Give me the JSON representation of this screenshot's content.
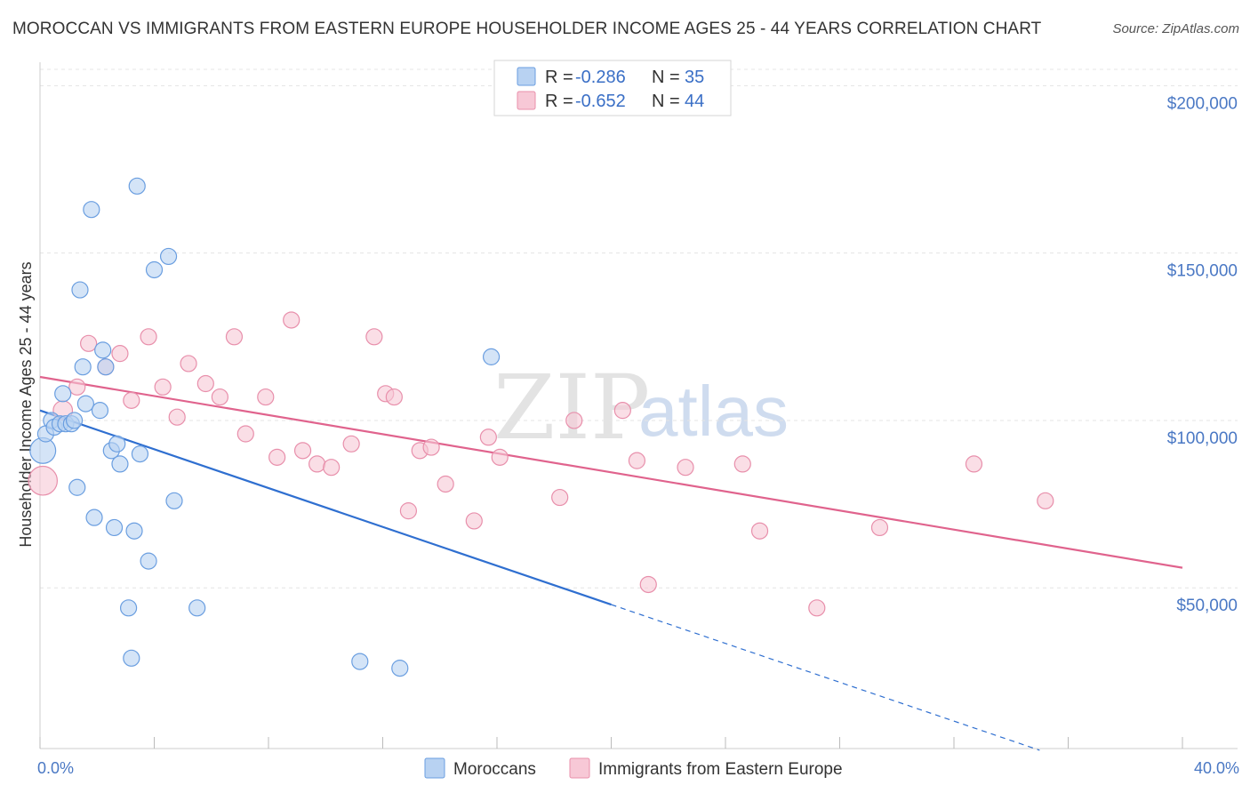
{
  "title": "MOROCCAN VS IMMIGRANTS FROM EASTERN EUROPE HOUSEHOLDER INCOME AGES 25 - 44 YEARS CORRELATION CHART",
  "source": "Source: ZipAtlas.com",
  "watermark": {
    "zip": "ZIP",
    "atlas": "atlas"
  },
  "colors": {
    "moroccans_fill": "#b8d2f2",
    "moroccans_stroke": "#6a9ee0",
    "moroccans_line": "#2f6fd0",
    "eastern_fill": "#f7c8d6",
    "eastern_stroke": "#e88fab",
    "eastern_line": "#e0638d",
    "grid": "#e4e4e4",
    "tick_text": "#4a78c4"
  },
  "legend": {
    "rows": [
      {
        "r_label": "R =",
        "r_value": "-0.286",
        "n_label": "N =",
        "n_value": "35"
      },
      {
        "r_label": "R =",
        "r_value": "-0.652",
        "n_label": "N =",
        "n_value": "44"
      }
    ]
  },
  "chart_data": {
    "type": "scatter",
    "title": "MOROCCAN VS IMMIGRANTS FROM EASTERN EUROPE HOUSEHOLDER INCOME AGES 25 - 44 YEARS CORRELATION CHART",
    "xlabel": "",
    "ylabel": "Householder Income Ages 25 - 44 years",
    "xlim": [
      0,
      40
    ],
    "ylim": [
      2000,
      207000
    ],
    "x_tick_labels": [
      "0.0%",
      "40.0%"
    ],
    "y_ticks": [
      50000,
      100000,
      150000,
      200000
    ],
    "y_tick_labels": [
      "$50,000",
      "$100,000",
      "$150,000",
      "$200,000"
    ],
    "grid": true,
    "legend_position": "top-center",
    "series": [
      {
        "name": "Moroccans",
        "r": -0.286,
        "n": 35,
        "trend": {
          "x0": 0,
          "y0": 103000,
          "x1": 20,
          "y1": 45000,
          "dashed_to_x": 35,
          "dashed_to_y": 1500
        },
        "points": [
          {
            "x": 0.1,
            "y": 91000,
            "s": 1.6
          },
          {
            "x": 0.2,
            "y": 96000,
            "s": 1
          },
          {
            "x": 0.4,
            "y": 100000,
            "s": 1
          },
          {
            "x": 0.5,
            "y": 98000,
            "s": 1
          },
          {
            "x": 0.7,
            "y": 99000,
            "s": 1
          },
          {
            "x": 0.8,
            "y": 108000,
            "s": 1
          },
          {
            "x": 0.9,
            "y": 99000,
            "s": 1
          },
          {
            "x": 1.1,
            "y": 99000,
            "s": 1
          },
          {
            "x": 1.2,
            "y": 100000,
            "s": 1
          },
          {
            "x": 1.3,
            "y": 80000,
            "s": 1
          },
          {
            "x": 1.4,
            "y": 139000,
            "s": 1
          },
          {
            "x": 1.5,
            "y": 116000,
            "s": 1
          },
          {
            "x": 1.6,
            "y": 105000,
            "s": 1
          },
          {
            "x": 1.8,
            "y": 163000,
            "s": 1
          },
          {
            "x": 1.9,
            "y": 71000,
            "s": 1
          },
          {
            "x": 2.1,
            "y": 103000,
            "s": 1
          },
          {
            "x": 2.2,
            "y": 121000,
            "s": 1
          },
          {
            "x": 2.3,
            "y": 116000,
            "s": 1
          },
          {
            "x": 2.5,
            "y": 91000,
            "s": 1
          },
          {
            "x": 2.6,
            "y": 68000,
            "s": 1
          },
          {
            "x": 2.7,
            "y": 93000,
            "s": 1
          },
          {
            "x": 2.8,
            "y": 87000,
            "s": 1
          },
          {
            "x": 3.1,
            "y": 44000,
            "s": 1
          },
          {
            "x": 3.2,
            "y": 29000,
            "s": 1
          },
          {
            "x": 3.3,
            "y": 67000,
            "s": 1
          },
          {
            "x": 3.4,
            "y": 170000,
            "s": 1
          },
          {
            "x": 3.5,
            "y": 90000,
            "s": 1
          },
          {
            "x": 3.8,
            "y": 58000,
            "s": 1
          },
          {
            "x": 4.0,
            "y": 145000,
            "s": 1
          },
          {
            "x": 4.5,
            "y": 149000,
            "s": 1
          },
          {
            "x": 4.7,
            "y": 76000,
            "s": 1
          },
          {
            "x": 5.5,
            "y": 44000,
            "s": 1
          },
          {
            "x": 11.2,
            "y": 28000,
            "s": 1
          },
          {
            "x": 12.6,
            "y": 26000,
            "s": 1
          },
          {
            "x": 15.8,
            "y": 119000,
            "s": 1
          }
        ]
      },
      {
        "name": "Immigrants from Eastern Europe",
        "r": -0.652,
        "n": 44,
        "trend": {
          "x0": 0,
          "y0": 113000,
          "x1": 40,
          "y1": 56000
        },
        "points": [
          {
            "x": 0.1,
            "y": 82000,
            "s": 1.8
          },
          {
            "x": 0.8,
            "y": 103000,
            "s": 1.2
          },
          {
            "x": 1.3,
            "y": 110000,
            "s": 1
          },
          {
            "x": 1.7,
            "y": 123000,
            "s": 1
          },
          {
            "x": 2.3,
            "y": 116000,
            "s": 1
          },
          {
            "x": 2.8,
            "y": 120000,
            "s": 1
          },
          {
            "x": 3.2,
            "y": 106000,
            "s": 1
          },
          {
            "x": 3.8,
            "y": 125000,
            "s": 1
          },
          {
            "x": 4.3,
            "y": 110000,
            "s": 1
          },
          {
            "x": 4.8,
            "y": 101000,
            "s": 1
          },
          {
            "x": 5.2,
            "y": 117000,
            "s": 1
          },
          {
            "x": 5.8,
            "y": 111000,
            "s": 1
          },
          {
            "x": 6.3,
            "y": 107000,
            "s": 1
          },
          {
            "x": 6.8,
            "y": 125000,
            "s": 1
          },
          {
            "x": 7.2,
            "y": 96000,
            "s": 1
          },
          {
            "x": 7.9,
            "y": 107000,
            "s": 1
          },
          {
            "x": 8.3,
            "y": 89000,
            "s": 1
          },
          {
            "x": 8.8,
            "y": 130000,
            "s": 1
          },
          {
            "x": 9.2,
            "y": 91000,
            "s": 1
          },
          {
            "x": 9.7,
            "y": 87000,
            "s": 1
          },
          {
            "x": 10.2,
            "y": 86000,
            "s": 1
          },
          {
            "x": 10.9,
            "y": 93000,
            "s": 1
          },
          {
            "x": 11.7,
            "y": 125000,
            "s": 1
          },
          {
            "x": 12.1,
            "y": 108000,
            "s": 1
          },
          {
            "x": 12.4,
            "y": 107000,
            "s": 1
          },
          {
            "x": 12.9,
            "y": 73000,
            "s": 1
          },
          {
            "x": 13.3,
            "y": 91000,
            "s": 1
          },
          {
            "x": 13.7,
            "y": 92000,
            "s": 1
          },
          {
            "x": 14.2,
            "y": 81000,
            "s": 1
          },
          {
            "x": 15.2,
            "y": 70000,
            "s": 1
          },
          {
            "x": 15.7,
            "y": 95000,
            "s": 1
          },
          {
            "x": 16.1,
            "y": 89000,
            "s": 1
          },
          {
            "x": 18.2,
            "y": 77000,
            "s": 1
          },
          {
            "x": 18.7,
            "y": 100000,
            "s": 1
          },
          {
            "x": 20.4,
            "y": 103000,
            "s": 1
          },
          {
            "x": 20.9,
            "y": 88000,
            "s": 1
          },
          {
            "x": 21.3,
            "y": 51000,
            "s": 1
          },
          {
            "x": 22.6,
            "y": 86000,
            "s": 1
          },
          {
            "x": 24.6,
            "y": 87000,
            "s": 1
          },
          {
            "x": 25.2,
            "y": 67000,
            "s": 1
          },
          {
            "x": 27.2,
            "y": 44000,
            "s": 1
          },
          {
            "x": 29.4,
            "y": 68000,
            "s": 1
          },
          {
            "x": 32.7,
            "y": 87000,
            "s": 1
          },
          {
            "x": 35.2,
            "y": 76000,
            "s": 1
          }
        ]
      }
    ]
  }
}
